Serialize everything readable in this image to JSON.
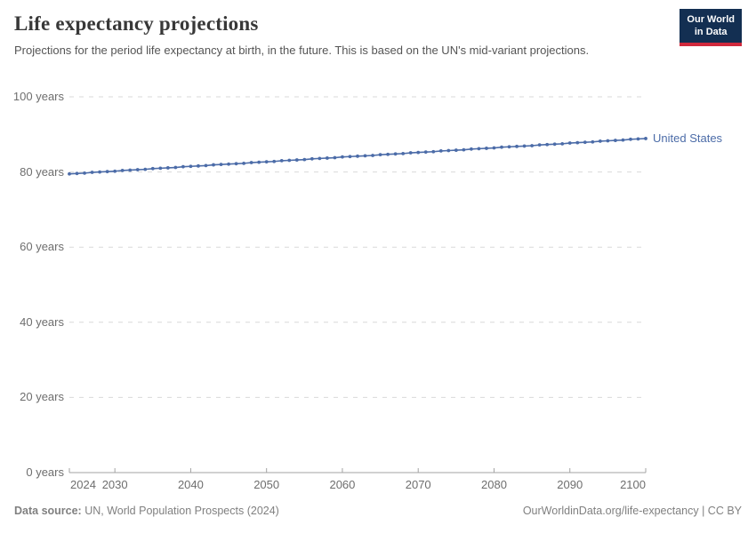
{
  "header": {
    "title": "Life expectancy projections",
    "subtitle": "Projections for the period life expectancy at birth, in the future. This is based on the UN's mid-variant projections.",
    "logo": {
      "line1": "Our World",
      "line2": "in Data"
    }
  },
  "chart_data": {
    "type": "line",
    "title": "Life expectancy projections",
    "xlabel": "",
    "ylabel": "years",
    "xlim": [
      2024,
      2100
    ],
    "ylim": [
      0,
      100
    ],
    "grid": "horizontal dashed gridlines at 20-year intervals",
    "legend_position": "label at end of line",
    "marker": "point per year",
    "x": [
      2024,
      2025,
      2026,
      2027,
      2028,
      2029,
      2030,
      2031,
      2032,
      2033,
      2034,
      2035,
      2036,
      2037,
      2038,
      2039,
      2040,
      2041,
      2042,
      2043,
      2044,
      2045,
      2046,
      2047,
      2048,
      2049,
      2050,
      2051,
      2052,
      2053,
      2054,
      2055,
      2056,
      2057,
      2058,
      2059,
      2060,
      2061,
      2062,
      2063,
      2064,
      2065,
      2066,
      2067,
      2068,
      2069,
      2070,
      2071,
      2072,
      2073,
      2074,
      2075,
      2076,
      2077,
      2078,
      2079,
      2080,
      2081,
      2082,
      2083,
      2084,
      2085,
      2086,
      2087,
      2088,
      2089,
      2090,
      2091,
      2092,
      2093,
      2094,
      2095,
      2096,
      2097,
      2098,
      2099,
      2100
    ],
    "series": [
      {
        "name": "United States",
        "color": "#4C6CA8",
        "values": [
          79.5,
          79.6,
          79.7,
          79.9,
          80.0,
          80.1,
          80.2,
          80.4,
          80.5,
          80.6,
          80.7,
          80.9,
          81.0,
          81.1,
          81.2,
          81.4,
          81.5,
          81.6,
          81.7,
          81.9,
          82.0,
          82.1,
          82.2,
          82.3,
          82.5,
          82.6,
          82.7,
          82.8,
          83.0,
          83.1,
          83.2,
          83.3,
          83.5,
          83.6,
          83.7,
          83.8,
          84.0,
          84.1,
          84.2,
          84.3,
          84.4,
          84.6,
          84.7,
          84.8,
          84.9,
          85.1,
          85.2,
          85.3,
          85.4,
          85.6,
          85.7,
          85.8,
          85.9,
          86.1,
          86.2,
          86.3,
          86.4,
          86.6,
          86.7,
          86.8,
          86.9,
          87.0,
          87.2,
          87.3,
          87.4,
          87.5,
          87.7,
          87.8,
          87.9,
          88.0,
          88.2,
          88.3,
          88.4,
          88.5,
          88.7,
          88.8,
          88.9
        ]
      }
    ],
    "y_ticks": [
      {
        "value": 0,
        "label": "0 years"
      },
      {
        "value": 20,
        "label": "20 years"
      },
      {
        "value": 40,
        "label": "40 years"
      },
      {
        "value": 60,
        "label": "60 years"
      },
      {
        "value": 80,
        "label": "80 years"
      },
      {
        "value": 100,
        "label": "100 years"
      }
    ],
    "x_ticks": [
      {
        "value": 2024,
        "label": "2024",
        "align": "left"
      },
      {
        "value": 2030,
        "label": "2030",
        "align": "center"
      },
      {
        "value": 2040,
        "label": "2040",
        "align": "center"
      },
      {
        "value": 2050,
        "label": "2050",
        "align": "center"
      },
      {
        "value": 2060,
        "label": "2060",
        "align": "center"
      },
      {
        "value": 2070,
        "label": "2070",
        "align": "center"
      },
      {
        "value": 2080,
        "label": "2080",
        "align": "center"
      },
      {
        "value": 2090,
        "label": "2090",
        "align": "center"
      },
      {
        "value": 2100,
        "label": "2100",
        "align": "right"
      }
    ]
  },
  "footer": {
    "datasource_label": "Data source:",
    "datasource_value": "UN, World Population Prospects (2024)",
    "credit": "OurWorldinData.org/life-expectancy | CC BY"
  },
  "colors": {
    "line": "#4C6CA8",
    "gridline": "#d9d9d9",
    "axis": "#a3a3a3",
    "tick_text": "#6e6e6e",
    "logo_background": "#132F52",
    "logo_stripe": "#D0293C"
  }
}
